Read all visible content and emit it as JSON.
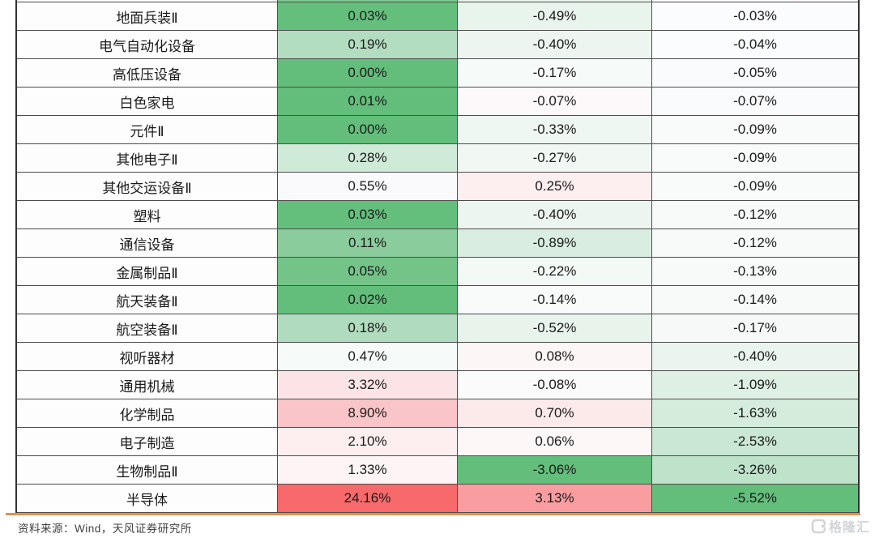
{
  "chart_data": {
    "type": "table",
    "subtype": "heatmap",
    "visible_columns": 4,
    "column_headers_visible": false,
    "partial_top_row": {
      "colors": [
        "#ffffff",
        "#7fc891",
        "#e9f4ed",
        "#fcfcfe"
      ]
    },
    "rows": [
      {
        "name": "地面兵装Ⅱ",
        "values": [
          "0.03%",
          "-0.49%",
          "-0.03%"
        ],
        "colors": [
          "#64bf7c",
          "#e9f4ed",
          "#fbfcfd"
        ]
      },
      {
        "name": "电气自动化设备",
        "values": [
          "0.19%",
          "-0.40%",
          "-0.04%"
        ],
        "colors": [
          "#b3ddc1",
          "#ecf5ef",
          "#fbfcfd"
        ]
      },
      {
        "name": "高低压设备",
        "values": [
          "0.00%",
          "-0.17%",
          "-0.05%"
        ],
        "colors": [
          "#63be7b",
          "#f6faf8",
          "#fafbfc"
        ]
      },
      {
        "name": "白色家电",
        "values": [
          "0.01%",
          "-0.07%",
          "-0.07%"
        ],
        "colors": [
          "#63be7b",
          "#fdf9fa",
          "#fafbfc"
        ]
      },
      {
        "name": "元件Ⅱ",
        "values": [
          "0.00%",
          "-0.33%",
          "-0.09%"
        ],
        "colors": [
          "#63be7b",
          "#eff7f2",
          "#f9fbfb"
        ]
      },
      {
        "name": "其他电子Ⅱ",
        "values": [
          "0.28%",
          "-0.27%",
          "-0.09%"
        ],
        "colors": [
          "#d0ead8",
          "#f1f8f4",
          "#f9fbfb"
        ]
      },
      {
        "name": "其他交运设备Ⅱ",
        "values": [
          "0.55%",
          "0.25%",
          "-0.09%"
        ],
        "colors": [
          "#fafafc",
          "#fdeef0",
          "#f9fbfb"
        ]
      },
      {
        "name": "塑料",
        "values": [
          "0.03%",
          "-0.40%",
          "-0.12%"
        ],
        "colors": [
          "#64bf7c",
          "#ecf5ef",
          "#f8fafa"
        ]
      },
      {
        "name": "通信设备",
        "values": [
          "0.11%",
          "-0.89%",
          "-0.12%"
        ],
        "colors": [
          "#8bcc9c",
          "#d9eee0",
          "#f8fafa"
        ]
      },
      {
        "name": "金属制品Ⅱ",
        "values": [
          "0.05%",
          "-0.22%",
          "-0.13%"
        ],
        "colors": [
          "#74c389",
          "#f3f9f5",
          "#f8faf9"
        ]
      },
      {
        "name": "航天装备Ⅱ",
        "values": [
          "0.02%",
          "-0.14%",
          "-0.14%"
        ],
        "colors": [
          "#63be7b",
          "#f9fbfa",
          "#f7faf9"
        ]
      },
      {
        "name": "航空装备Ⅱ",
        "values": [
          "0.18%",
          "-0.52%",
          "-0.17%"
        ],
        "colors": [
          "#b0dbbf",
          "#e8f3ec",
          "#f6f9f8"
        ]
      },
      {
        "name": "视听器材",
        "values": [
          "0.47%",
          "0.08%",
          "-0.40%"
        ],
        "colors": [
          "#f6faf8",
          "#fdf6f7",
          "#ebf5ef"
        ]
      },
      {
        "name": "通用机械",
        "values": [
          "3.32%",
          "-0.08%",
          "-1.09%"
        ],
        "colors": [
          "#fce4e6",
          "#fcfbfc",
          "#def0e4"
        ]
      },
      {
        "name": "化学制品",
        "values": [
          "8.90%",
          "0.70%",
          "-1.63%"
        ],
        "colors": [
          "#fac5c8",
          "#fce9ea",
          "#d5ecdc"
        ]
      },
      {
        "name": "电子制造",
        "values": [
          "2.10%",
          "0.06%",
          "-2.53%"
        ],
        "colors": [
          "#fdeef0",
          "#fdf7f8",
          "#c9e7d2"
        ]
      },
      {
        "name": "生物制品Ⅱ",
        "values": [
          "1.33%",
          "-3.06%",
          "-3.26%"
        ],
        "colors": [
          "#fdf4f5",
          "#63be7b",
          "#bfe2ca"
        ]
      },
      {
        "name": "半导体",
        "values": [
          "24.16%",
          "3.13%",
          "-5.52%"
        ],
        "colors": [
          "#f8696b",
          "#f99da1",
          "#63be7b"
        ]
      }
    ],
    "color_scale": {
      "low": "#63be7b",
      "mid": "#fcfcfe",
      "high": "#f8696b"
    }
  },
  "footer": {
    "source": "资料来源：Wind，天风证券研究所"
  },
  "watermark": {
    "text": "格隆汇"
  },
  "style": {
    "accent_line_color": "#e2914f",
    "border_color": "#4d4d4d",
    "text_color": "#1a1a1a"
  }
}
